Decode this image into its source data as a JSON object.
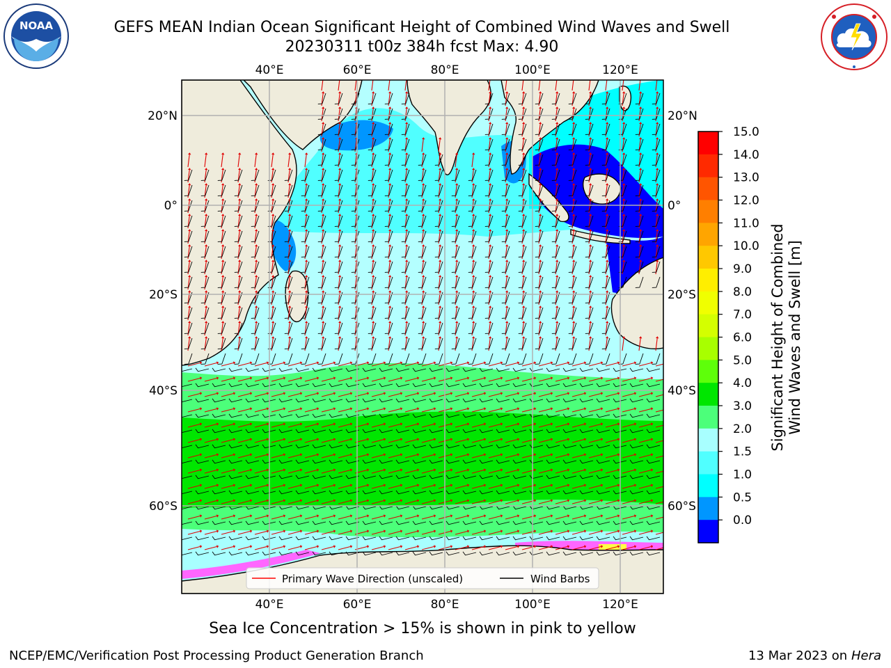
{
  "header": {
    "title_line1": "GEFS MEAN Indian Ocean Significant Height of Combined Wind Waves and Swell",
    "title_line2": "20230311 t00z 384h fcst   Max: 4.90"
  },
  "logos": {
    "left": {
      "icon": "noaa-logo-icon",
      "text": "NOAA",
      "ring_text": "NATIONAL OCEANIC AND ATMOSPHERIC ADMINISTRATION · U.S. DEPARTMENT OF COMMERCE"
    },
    "right": {
      "icon": "nws-logo-icon",
      "ring_text": "NATIONAL WEATHER SERVICE"
    }
  },
  "map": {
    "lon_ticks": [
      "40°E",
      "60°E",
      "80°E",
      "100°E",
      "120°E"
    ],
    "lat_ticks": [
      "20°N",
      "0°",
      "20°S",
      "40°S",
      "60°S"
    ],
    "legend": {
      "wave_label": "Primary Wave Direction (unscaled)",
      "wind_label": "Wind Barbs",
      "wave_color": "#ff0000",
      "wind_color": "#000000"
    }
  },
  "colorbar": {
    "label_line1": "Significant Height of Combined",
    "label_line2": "Wind Waves and Swell [m]",
    "ticks": [
      "15.0",
      "14.0",
      "13.0",
      "12.0",
      "11.0",
      "10.0",
      "9.0",
      "8.0",
      "7.0",
      "6.0",
      "5.0",
      "4.0",
      "3.0",
      "2.0",
      "1.5",
      "1.0",
      "0.5",
      "0.0"
    ],
    "colors_top_to_bottom": [
      "#ff0000",
      "#ff2a00",
      "#ff5500",
      "#ff7f00",
      "#ffa500",
      "#ffc800",
      "#ffee00",
      "#f0ff00",
      "#d4ff00",
      "#a8ff00",
      "#5eff0a",
      "#00e600",
      "#4cff7a",
      "#a8ffff",
      "#50ffff",
      "#00ffff",
      "#0096ff",
      "#0000ff"
    ],
    "land_color": "#efecdc",
    "ice_colors": [
      "#ff66ff",
      "#ffff44"
    ]
  },
  "notes": {
    "ice": "Sea Ice Concentration > 15% is shown in pink to yellow",
    "credit": "NCEP/EMC/Verification Post Processing Product Generation Branch",
    "date": "13 Mar 2023 on",
    "machine": "Hera"
  }
}
